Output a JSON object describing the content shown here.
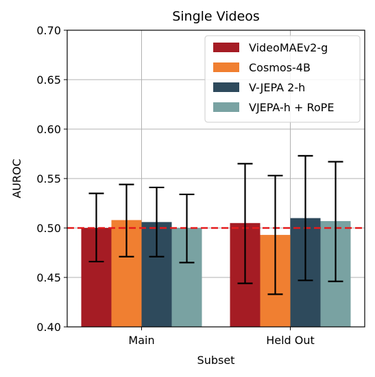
{
  "chart_data": {
    "type": "bar",
    "title": "Single Videos",
    "xlabel": "Subset",
    "ylabel": "AUROC",
    "categories": [
      "Main",
      "Held Out"
    ],
    "ylim": [
      0.4,
      0.7
    ],
    "yticks": [
      "0.40",
      "0.45",
      "0.50",
      "0.55",
      "0.60",
      "0.65",
      "0.70"
    ],
    "grid": true,
    "legend_position": "top-right",
    "reference_line": {
      "y": 0.5,
      "color": "#e41a1c",
      "style": "dashed"
    },
    "series": [
      {
        "name": "VideoMAEv2-g",
        "color": "#a51c24",
        "values": [
          0.5,
          0.505
        ],
        "err_low": [
          0.466,
          0.444
        ],
        "err_high": [
          0.535,
          0.565
        ]
      },
      {
        "name": "Cosmos-4B",
        "color": "#f07f31",
        "values": [
          0.508,
          0.493
        ],
        "err_low": [
          0.471,
          0.433
        ],
        "err_high": [
          0.544,
          0.553
        ]
      },
      {
        "name": "V-JEPA 2-h",
        "color": "#2e4a5c",
        "values": [
          0.506,
          0.51
        ],
        "err_low": [
          0.471,
          0.447
        ],
        "err_high": [
          0.541,
          0.573
        ]
      },
      {
        "name": "VJEPA-h + RoPE",
        "color": "#79a2a2",
        "values": [
          0.5,
          0.507
        ],
        "err_low": [
          0.465,
          0.446
        ],
        "err_high": [
          0.534,
          0.567
        ]
      }
    ]
  }
}
